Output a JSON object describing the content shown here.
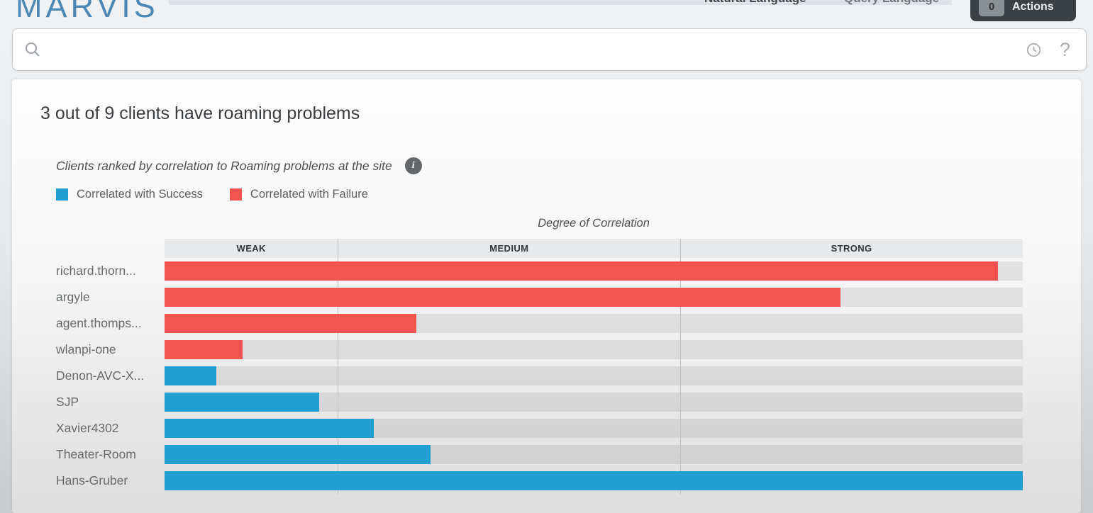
{
  "header": {
    "logo_text": "MARVIS",
    "nav_tabs": [
      {
        "label": "Natural Language",
        "active": true
      },
      {
        "label": "Query Language",
        "active": false
      }
    ],
    "actions_button": {
      "label": "Actions",
      "badge": "0"
    }
  },
  "search": {
    "value": "",
    "placeholder": ""
  },
  "insight": {
    "title": "3 out of 9 clients have roaming problems",
    "subtitle": "Clients ranked by correlation to Roaming problems at the site"
  },
  "legend": {
    "items": [
      {
        "label": "Correlated with Success",
        "series": "success",
        "color": "#219fd0"
      },
      {
        "label": "Correlated with Failure",
        "series": "failure",
        "color": "#f2544f"
      }
    ]
  },
  "chart_data": {
    "type": "bar",
    "orientation": "horizontal",
    "title": "Degree of Correlation",
    "x_axis": {
      "bands": [
        "WEAK",
        "MEDIUM",
        "STRONG"
      ],
      "band_boundaries_pct": [
        0,
        20.2,
        60.1,
        100
      ]
    },
    "categories": [
      "richard.thorn...",
      "argyle",
      "agent.thomps...",
      "wlanpi-one",
      "Denon-AVC-X...",
      "SJP",
      "Xavier4302",
      "Theater-Room",
      "Hans-Gruber"
    ],
    "series_by_row": [
      "failure",
      "failure",
      "failure",
      "failure",
      "success",
      "success",
      "success",
      "success",
      "success"
    ],
    "values_pct": [
      97.1,
      78.8,
      29.3,
      9.1,
      6.0,
      18.0,
      24.4,
      31.0,
      100
    ],
    "colors": {
      "success": "#219fd0",
      "failure": "#f2544f"
    },
    "legend_entries": [
      "Correlated with Success",
      "Correlated with Failure"
    ],
    "legend_position": "top-left",
    "grid": "vertical band dividers"
  }
}
